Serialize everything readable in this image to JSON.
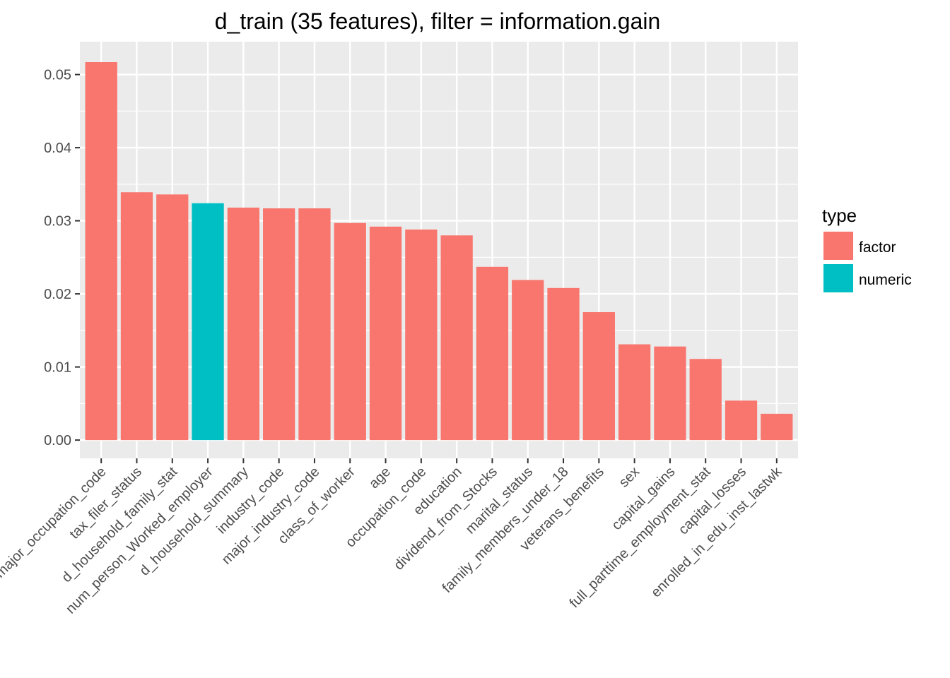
{
  "chart_data": {
    "type": "bar",
    "title": "d_train (35 features), filter = information.gain",
    "xlabel": "",
    "ylabel": "",
    "ylim": [
      -0.0025,
      0.0545
    ],
    "yticks": [
      "0.00",
      "0.01",
      "0.02",
      "0.03",
      "0.04",
      "0.05"
    ],
    "ytick_values": [
      0,
      0.01,
      0.02,
      0.03,
      0.04,
      0.05
    ],
    "grid": true,
    "legend_position": "right",
    "legend": {
      "title": "type",
      "items": [
        {
          "label": "factor",
          "color": "#F8766D"
        },
        {
          "label": "numeric",
          "color": "#00BFC4"
        }
      ]
    },
    "categories": [
      "major_occupation_code",
      "tax_filer_status",
      "d_household_family_stat",
      "num_person_Worked_employer",
      "d_household_summary",
      "industry_code",
      "major_industry_code",
      "class_of_worker",
      "age",
      "occupation_code",
      "education",
      "dividend_from_Stocks",
      "marital_status",
      "family_members_under_18",
      "veterans_benefits",
      "sex",
      "capital_gains",
      "full_parttime_employment_stat",
      "capital_losses",
      "enrolled_in_edu_inst_lastwk"
    ],
    "values": [
      0.0517,
      0.0339,
      0.0336,
      0.0324,
      0.0318,
      0.0317,
      0.0317,
      0.0297,
      0.0292,
      0.0288,
      0.028,
      0.0237,
      0.0219,
      0.0208,
      0.0175,
      0.0131,
      0.0128,
      0.0111,
      0.0054,
      0.0036
    ],
    "types": [
      "factor",
      "factor",
      "factor",
      "numeric",
      "factor",
      "factor",
      "factor",
      "factor",
      "factor",
      "factor",
      "factor",
      "factor",
      "factor",
      "factor",
      "factor",
      "factor",
      "factor",
      "factor",
      "factor",
      "factor"
    ]
  }
}
